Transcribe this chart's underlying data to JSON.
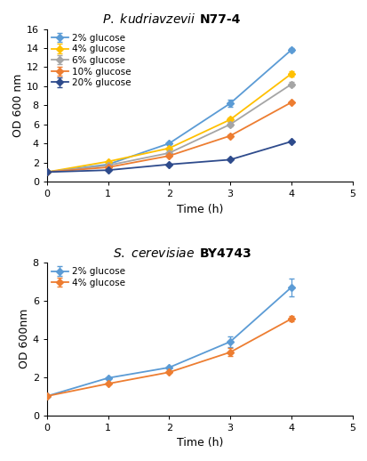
{
  "top": {
    "xlabel": "Time (h)",
    "ylabel": "OD 600 nm",
    "xlim": [
      0,
      5
    ],
    "ylim": [
      0,
      16
    ],
    "yticks": [
      0,
      2,
      4,
      6,
      8,
      10,
      12,
      14,
      16
    ],
    "xticks": [
      0,
      1,
      2,
      3,
      4,
      5
    ],
    "time": [
      0,
      1,
      2,
      3,
      4
    ],
    "series": [
      {
        "label": "2% glucose",
        "color": "#5B9BD5",
        "values": [
          1.0,
          1.8,
          4.0,
          8.2,
          13.8
        ],
        "yerr": [
          0.0,
          0.0,
          0.0,
          0.35,
          0.18
        ]
      },
      {
        "label": "4% glucose",
        "color": "#FFC000",
        "values": [
          1.0,
          2.1,
          3.5,
          6.5,
          11.3
        ],
        "yerr": [
          0.0,
          0.0,
          0.0,
          0.2,
          0.3
        ]
      },
      {
        "label": "6% glucose",
        "color": "#A5A5A5",
        "values": [
          1.0,
          1.7,
          3.0,
          6.0,
          10.2
        ],
        "yerr": [
          0.0,
          0.0,
          0.0,
          0.25,
          0.25
        ]
      },
      {
        "label": "10% glucose",
        "color": "#ED7D31",
        "values": [
          1.0,
          1.5,
          2.7,
          4.8,
          8.3
        ],
        "yerr": [
          0.0,
          0.0,
          0.0,
          0.15,
          0.0
        ]
      },
      {
        "label": "20% glucose",
        "color": "#2E4B8C",
        "values": [
          1.0,
          1.2,
          1.8,
          2.3,
          4.2
        ],
        "yerr": [
          0.0,
          0.0,
          0.0,
          0.0,
          0.0
        ]
      }
    ]
  },
  "bottom": {
    "xlabel": "Time (h)",
    "ylabel": "OD 600nm",
    "xlim": [
      0,
      5
    ],
    "ylim": [
      0,
      8
    ],
    "yticks": [
      0,
      2,
      4,
      6,
      8
    ],
    "xticks": [
      0,
      1,
      2,
      3,
      4,
      5
    ],
    "time": [
      0,
      1,
      2,
      3,
      4
    ],
    "series": [
      {
        "label": "2% glucose",
        "color": "#5B9BD5",
        "values": [
          1.0,
          1.95,
          2.5,
          3.85,
          6.7
        ],
        "yerr": [
          0.0,
          0.0,
          0.0,
          0.3,
          0.45
        ]
      },
      {
        "label": "4% glucose",
        "color": "#ED7D31",
        "values": [
          1.0,
          1.65,
          2.25,
          3.3,
          5.05
        ],
        "yerr": [
          0.0,
          0.0,
          0.0,
          0.2,
          0.15
        ]
      }
    ]
  },
  "bg_color": "#FFFFFF",
  "marker": "D",
  "marker_size": 4,
  "linewidth": 1.3,
  "capsize": 2.5,
  "elinewidth": 0.9
}
